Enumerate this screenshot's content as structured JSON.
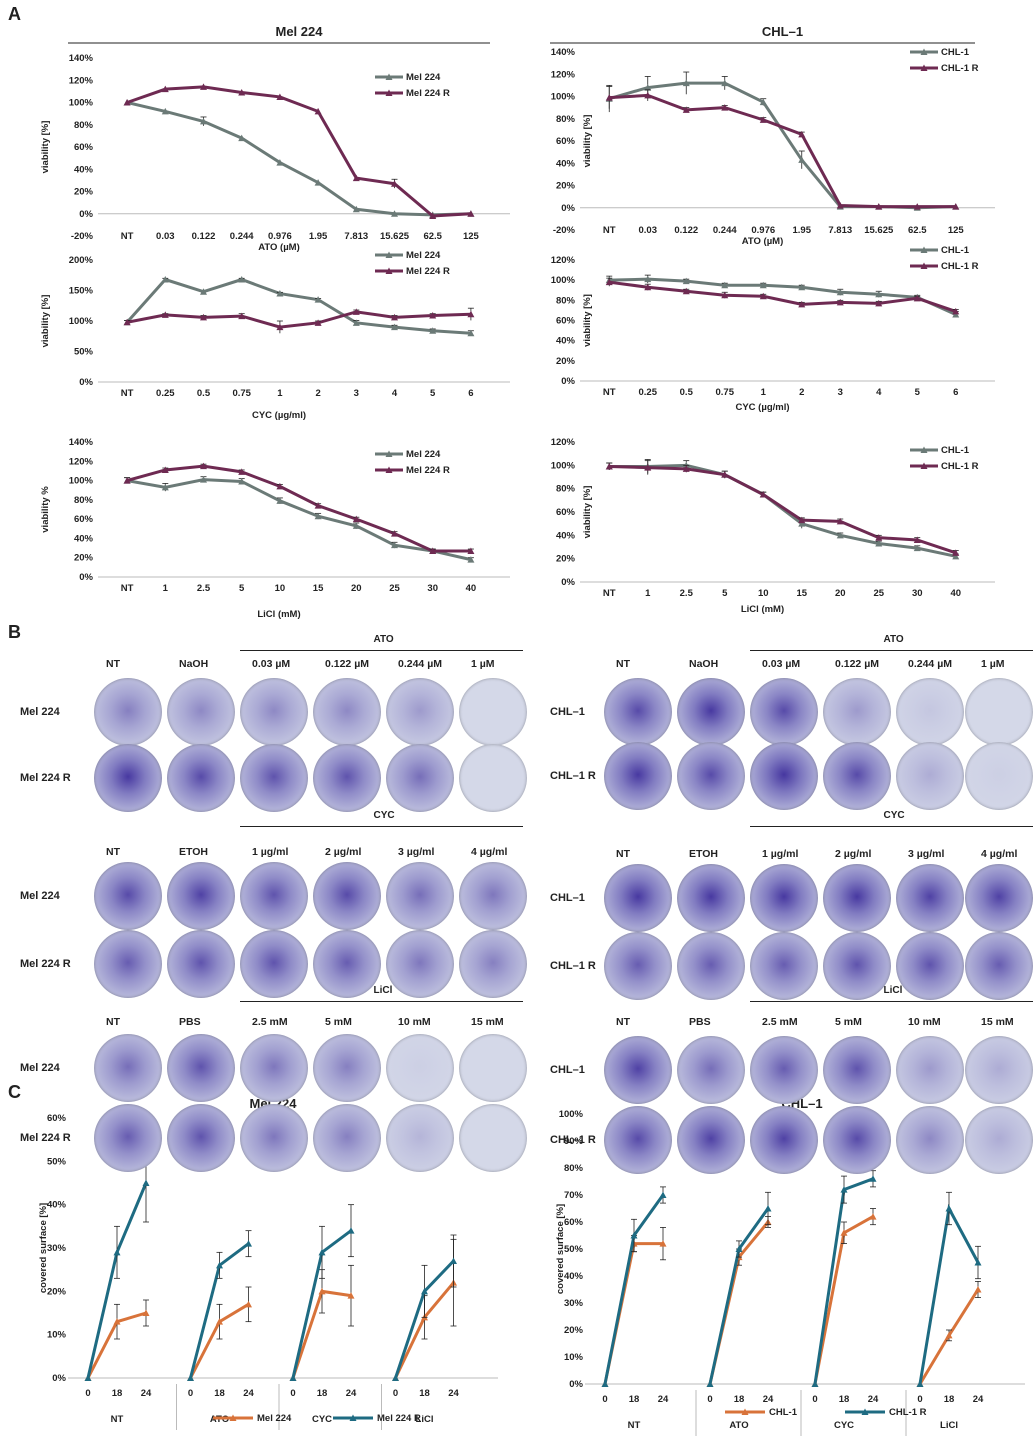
{
  "panels": {
    "a": "A",
    "b": "B",
    "c": "C"
  },
  "colors": {
    "parental": "#6b7a77",
    "resistant": "#6e2a52",
    "mig_parental": "#d8733a",
    "mig_resistant": "#1e6b82",
    "dish_bg": "#d4d8e8",
    "stain": "#5b4ab5",
    "stain_chl": "#4a2ca6"
  },
  "chart_data": [
    {
      "id": "a1",
      "type": "line",
      "title": "Mel 224",
      "xlabel": "ATO (µM)",
      "ylabel": "viability [%]",
      "categories": [
        "NT",
        "0.03",
        "0.122",
        "0.244",
        "0.976",
        "1.95",
        "7.813",
        "15.625",
        "62.5",
        "125"
      ],
      "yticks": [
        "-20%",
        "0%",
        "20%",
        "40%",
        "60%",
        "80%",
        "100%",
        "120%",
        "140%"
      ],
      "ylim": [
        -20,
        140
      ],
      "grid": false,
      "legend": "top-right",
      "series": [
        {
          "name": "Mel 224",
          "values": [
            100,
            92,
            83,
            68,
            46,
            28,
            4,
            0,
            -1,
            0
          ]
        },
        {
          "name": "Mel 224 R",
          "values": [
            100,
            112,
            114,
            109,
            105,
            92,
            32,
            27,
            -2,
            0
          ]
        }
      ]
    },
    {
      "id": "a2",
      "type": "line",
      "title": "CHL–1",
      "xlabel": "ATO (µM)",
      "ylabel": "viability [%]",
      "categories": [
        "NT",
        "0.03",
        "0.122",
        "0.244",
        "0.976",
        "1.95",
        "7.813",
        "15.625",
        "62.5",
        "125"
      ],
      "yticks": [
        "-20%",
        "0%",
        "20%",
        "40%",
        "60%",
        "80%",
        "100%",
        "120%",
        "140%"
      ],
      "ylim": [
        -20,
        140
      ],
      "grid": false,
      "legend": "top-right",
      "series": [
        {
          "name": "CHL-1",
          "values": [
            98,
            108,
            112,
            112,
            95,
            43,
            1,
            1,
            0,
            1
          ]
        },
        {
          "name": "CHL-1 R",
          "values": [
            99,
            101,
            88,
            90,
            79,
            66,
            2,
            1,
            1,
            1
          ]
        }
      ]
    },
    {
      "id": "a3",
      "type": "line",
      "title": "",
      "xlabel": "CYC (µg/ml)",
      "ylabel": "viability [%]",
      "categories": [
        "NT",
        "0.25",
        "0.5",
        "0.75",
        "1",
        "2",
        "3",
        "4",
        "5",
        "6"
      ],
      "yticks": [
        "0%",
        "50%",
        "100%",
        "150%",
        "200%"
      ],
      "ylim": [
        0,
        200
      ],
      "grid": false,
      "legend": "top-right",
      "series": [
        {
          "name": "Mel 224",
          "values": [
            98,
            168,
            148,
            168,
            145,
            135,
            97,
            90,
            84,
            80
          ]
        },
        {
          "name": "Mel 224 R",
          "values": [
            98,
            110,
            106,
            108,
            90,
            97,
            115,
            106,
            109,
            111
          ]
        }
      ]
    },
    {
      "id": "a4",
      "type": "line",
      "title": "",
      "xlabel": "CYC (µg/ml)",
      "ylabel": "viability [%]",
      "categories": [
        "NT",
        "0.25",
        "0.5",
        "0.75",
        "1",
        "2",
        "3",
        "4",
        "5",
        "6"
      ],
      "yticks": [
        "0%",
        "20%",
        "40%",
        "60%",
        "80%",
        "100%",
        "120%"
      ],
      "ylim": [
        0,
        120
      ],
      "grid": false,
      "legend": "top-right",
      "series": [
        {
          "name": "CHL-1",
          "values": [
            100,
            101,
            99,
            95,
            95,
            93,
            88,
            86,
            83,
            66
          ]
        },
        {
          "name": "CHL-1 R",
          "values": [
            98,
            93,
            89,
            85,
            84,
            76,
            78,
            77,
            82,
            69
          ]
        }
      ]
    },
    {
      "id": "a5",
      "type": "line",
      "title": "",
      "xlabel": "LiCl (mM)",
      "ylabel": "viability %",
      "categories": [
        "NT",
        "1",
        "2.5",
        "5",
        "10",
        "15",
        "20",
        "25",
        "30",
        "40"
      ],
      "yticks": [
        "0%",
        "20%",
        "40%",
        "60%",
        "80%",
        "100%",
        "120%",
        "140%"
      ],
      "ylim": [
        0,
        140
      ],
      "grid": false,
      "legend": "top-right",
      "series": [
        {
          "name": "Mel 224",
          "values": [
            100,
            93,
            101,
            99,
            79,
            63,
            53,
            33,
            27,
            18
          ]
        },
        {
          "name": "Mel 224 R",
          "values": [
            100,
            111,
            115,
            109,
            94,
            74,
            60,
            45,
            27,
            27
          ]
        }
      ]
    },
    {
      "id": "a6",
      "type": "line",
      "title": "",
      "xlabel": "LiCl (mM)",
      "ylabel": "viability [%]",
      "categories": [
        "NT",
        "1",
        "2.5",
        "5",
        "10",
        "15",
        "20",
        "25",
        "30",
        "40"
      ],
      "yticks": [
        "0%",
        "20%",
        "40%",
        "60%",
        "80%",
        "100%",
        "120%"
      ],
      "ylim": [
        0,
        120
      ],
      "grid": false,
      "legend": "top-right",
      "series": [
        {
          "name": "CHL-1",
          "values": [
            99,
            99,
            100,
            92,
            75,
            50,
            40,
            33,
            29,
            22
          ]
        },
        {
          "name": "CHL-1 R",
          "values": [
            99,
            98,
            97,
            92,
            75,
            53,
            52,
            38,
            36,
            25
          ]
        }
      ]
    },
    {
      "id": "c1",
      "type": "line",
      "title": "Mel 224",
      "xlabel": "",
      "ylabel": "covered surface [%]",
      "groups": [
        "NT",
        "ATO",
        "CYC",
        "LiCl"
      ],
      "timepoints": [
        "0",
        "18",
        "24"
      ],
      "yticks": [
        "0%",
        "10%",
        "20%",
        "30%",
        "40%",
        "50%",
        "60%"
      ],
      "ylim": [
        0,
        60
      ],
      "grid": false,
      "legend": "bottom",
      "series": [
        {
          "name": "Mel 224",
          "values": [
            [
              0,
              13,
              15
            ],
            [
              0,
              13,
              17
            ],
            [
              0,
              20,
              19
            ],
            [
              0,
              14,
              22
            ]
          ]
        },
        {
          "name": "Mel 224 R",
          "values": [
            [
              0,
              29,
              45
            ],
            [
              0,
              26,
              31
            ],
            [
              0,
              29,
              34
            ],
            [
              0,
              20,
              27
            ]
          ]
        }
      ]
    },
    {
      "id": "c2",
      "type": "line",
      "title": "CHL–1",
      "xlabel": "",
      "ylabel": "covered surface [%]",
      "groups": [
        "NT",
        "ATO",
        "CYC",
        "LiCl"
      ],
      "timepoints": [
        "0",
        "18",
        "24"
      ],
      "yticks": [
        "0%",
        "10%",
        "20%",
        "30%",
        "40%",
        "50%",
        "60%",
        "70%",
        "80%",
        "90%",
        "100%"
      ],
      "ylim": [
        0,
        100
      ],
      "grid": false,
      "legend": "bottom",
      "series": [
        {
          "name": "CHL-1",
          "values": [
            [
              0,
              52,
              52
            ],
            [
              0,
              47,
              60
            ],
            [
              0,
              56,
              62
            ],
            [
              0,
              18,
              35
            ]
          ]
        },
        {
          "name": "CHL-1 R",
          "values": [
            [
              0,
              55,
              70
            ],
            [
              0,
              50,
              65
            ],
            [
              0,
              72,
              76
            ],
            [
              0,
              65,
              45
            ]
          ]
        }
      ]
    }
  ],
  "plates": {
    "mel_ato": {
      "group": "ATO",
      "headers": [
        "NT",
        "NaOH",
        "0.03 µM",
        "0.122 µM",
        "0.244 µM",
        "1 µM"
      ],
      "rows": [
        "Mel 224",
        "Mel 224 R"
      ]
    },
    "chl_ato": {
      "group": "ATO",
      "headers": [
        "NT",
        "NaOH",
        "0.03 µM",
        "0.122 µM",
        "0.244 µM",
        "1 µM"
      ],
      "rows": [
        "CHL–1",
        "CHL–1 R"
      ]
    },
    "mel_cyc": {
      "group": "CYC",
      "headers": [
        "NT",
        "ETOH",
        "1 µg/ml",
        "2 µg/ml",
        "3 µg/ml",
        "4 µg/ml"
      ],
      "rows": [
        "Mel 224",
        "Mel 224 R"
      ]
    },
    "chl_cyc": {
      "group": "CYC",
      "headers": [
        "NT",
        "ETOH",
        "1 µg/ml",
        "2 µg/ml",
        "3 µg/ml",
        "4 µg/ml"
      ],
      "rows": [
        "CHL–1",
        "CHL–1 R"
      ]
    },
    "mel_licl": {
      "group": "LiCl",
      "headers": [
        "NT",
        "PBS",
        "2.5 mM",
        "5 mM",
        "10 mM",
        "15 mM"
      ],
      "rows": [
        "Mel 224",
        "Mel 224 R"
      ]
    },
    "chl_licl": {
      "group": "LiCl",
      "headers": [
        "NT",
        "PBS",
        "2.5 mM",
        "5 mM",
        "10 mM",
        "15 mM"
      ],
      "rows": [
        "CHL–1",
        "CHL–1 R"
      ]
    }
  }
}
